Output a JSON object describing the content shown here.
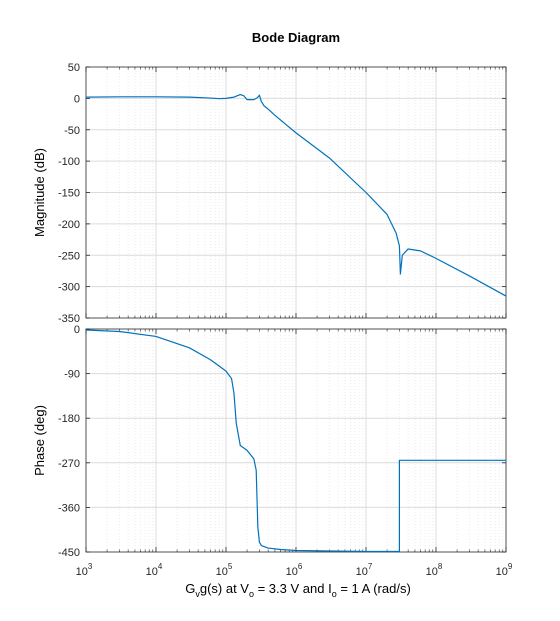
{
  "chart_data": {
    "type": "line",
    "title": "Bode Diagram",
    "xscale": "log",
    "xlim": [
      1000,
      1000000000
    ],
    "x_ticks": [
      {
        "base": "10",
        "exp": "3"
      },
      {
        "base": "10",
        "exp": "4"
      },
      {
        "base": "10",
        "exp": "5"
      },
      {
        "base": "10",
        "exp": "6"
      },
      {
        "base": "10",
        "exp": "7"
      },
      {
        "base": "10",
        "exp": "8"
      },
      {
        "base": "10",
        "exp": "9"
      }
    ],
    "xlabel": {
      "parts": [
        {
          "t": "G",
          "sub": false
        },
        {
          "t": "v",
          "sub": true
        },
        {
          "t": "g(s) at V",
          "sub": false
        },
        {
          "t": "o",
          "sub": true
        },
        {
          "t": " = 3.3 V and I",
          "sub": false
        },
        {
          "t": "o",
          "sub": true
        },
        {
          "t": " = 1 A  (rad/s)",
          "sub": false
        }
      ]
    },
    "grid": true,
    "colors": {
      "line": "#0072bd",
      "major_grid": "#dcdcdc",
      "minor_grid": "#ececec",
      "axis": "#262626"
    },
    "panels": [
      {
        "id": "magnitude",
        "ylabel": "Magnitude (dB)",
        "ylim": [
          -350,
          50
        ],
        "yticks": [
          "50",
          "0",
          "-50",
          "-100",
          "-150",
          "-200",
          "-250",
          "-300",
          "-350"
        ],
        "ytick_values": [
          50,
          0,
          -50,
          -100,
          -150,
          -200,
          -250,
          -300,
          -350
        ],
        "x": [
          1000,
          3000,
          10000,
          30000,
          60000,
          80000,
          100000,
          130000,
          160000,
          180000,
          200000,
          250000,
          280000,
          300000,
          320000,
          350000,
          400000,
          500000,
          1000000,
          3000000,
          10000000,
          20000000,
          27000000,
          30000000,
          31000000,
          33000000,
          40000000,
          60000000,
          100000000,
          300000000,
          1000000000
        ],
        "y": [
          2,
          2.5,
          2.5,
          2,
          0.5,
          -0.5,
          0,
          2,
          6,
          4,
          -2,
          -2,
          1,
          5,
          -5,
          -12,
          -17,
          -27,
          -55,
          -95,
          -150,
          -185,
          -215,
          -235,
          -280,
          -250,
          -240,
          -243,
          -255,
          -283,
          -315
        ]
      },
      {
        "id": "phase",
        "ylabel": "Phase (deg)",
        "ylim": [
          -450,
          0
        ],
        "yticks": [
          "0",
          "-90",
          "-180",
          "-270",
          "-360",
          "-450"
        ],
        "ytick_values": [
          0,
          -90,
          -180,
          -270,
          -360,
          -450
        ],
        "x": [
          1000,
          3000,
          10000,
          30000,
          60000,
          100000,
          120000,
          130000,
          140000,
          160000,
          200000,
          250000,
          270000,
          285000,
          300000,
          320000,
          400000,
          600000,
          1000000,
          3000000,
          10000000,
          25000000,
          30000000,
          30000001,
          100000000,
          1000000000
        ],
        "y": [
          -2,
          -5,
          -15,
          -38,
          -62,
          -85,
          -100,
          -130,
          -190,
          -235,
          -245,
          -262,
          -285,
          -400,
          -430,
          -437,
          -442,
          -445,
          -447,
          -448,
          -449,
          -449,
          -449,
          -265,
          -265,
          -265
        ]
      }
    ]
  }
}
